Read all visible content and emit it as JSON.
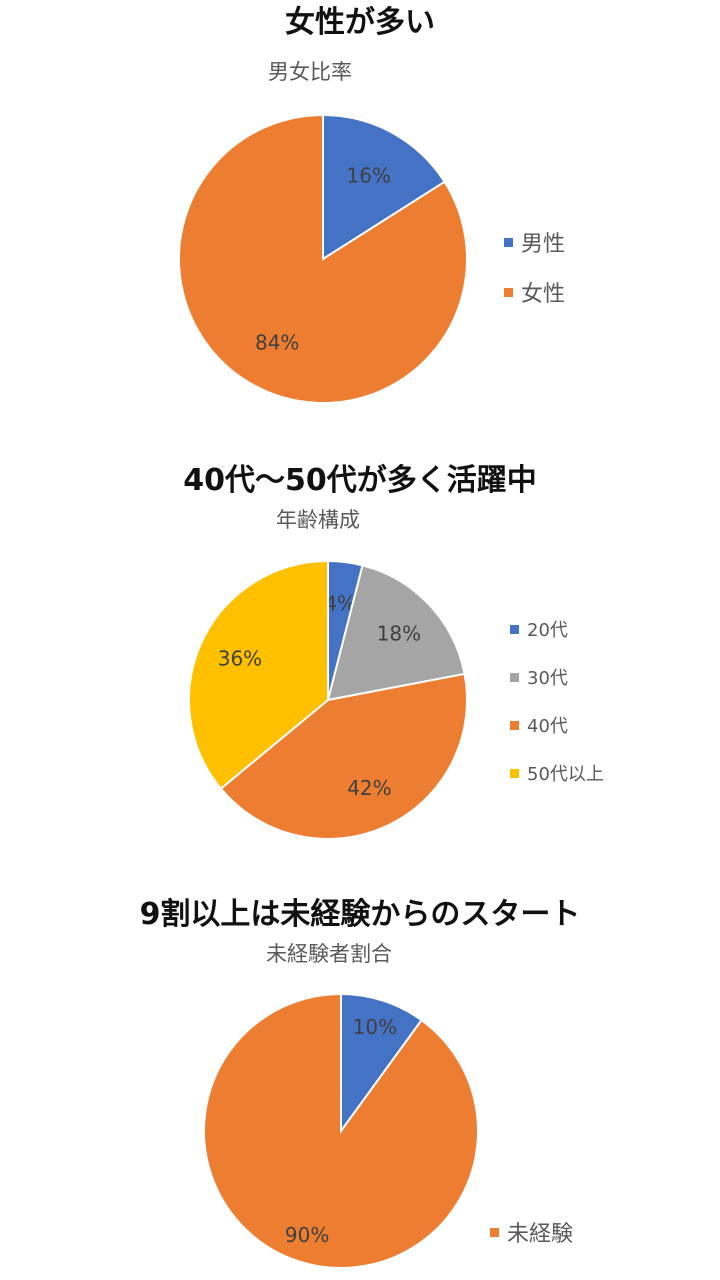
{
  "chart_data": [
    {
      "type": "pie",
      "headline": "女性が多い",
      "title": "男女比率",
      "slices": [
        {
          "label": "男性",
          "value": 16,
          "display": "16%",
          "color": "#4472C4"
        },
        {
          "label": "女性",
          "value": 84,
          "display": "84%",
          "color": "#ED7D31"
        }
      ],
      "legend": "right"
    },
    {
      "type": "pie",
      "headline": "40代〜50代が多く活躍中",
      "title": "年齢構成",
      "slices": [
        {
          "label": "20代",
          "value": 4,
          "display": "4%",
          "color": "#4472C4"
        },
        {
          "label": "30代",
          "value": 18,
          "display": "18%",
          "color": "#A5A5A5"
        },
        {
          "label": "40代",
          "value": 42,
          "display": "42%",
          "color": "#ED7D31"
        },
        {
          "label": "50代以上",
          "value": 36,
          "display": "36%",
          "color": "#FFC000"
        }
      ],
      "legend": "right"
    },
    {
      "type": "pie",
      "headline": "9割以上は未経験からのスタート",
      "title": "未経験者割合",
      "slices": [
        {
          "label": "",
          "value": 10,
          "display": "10%",
          "color": "#4472C4"
        },
        {
          "label": "未経験",
          "value": 90,
          "display": "90%",
          "color": "#ED7D31"
        }
      ],
      "legend": "right"
    }
  ]
}
